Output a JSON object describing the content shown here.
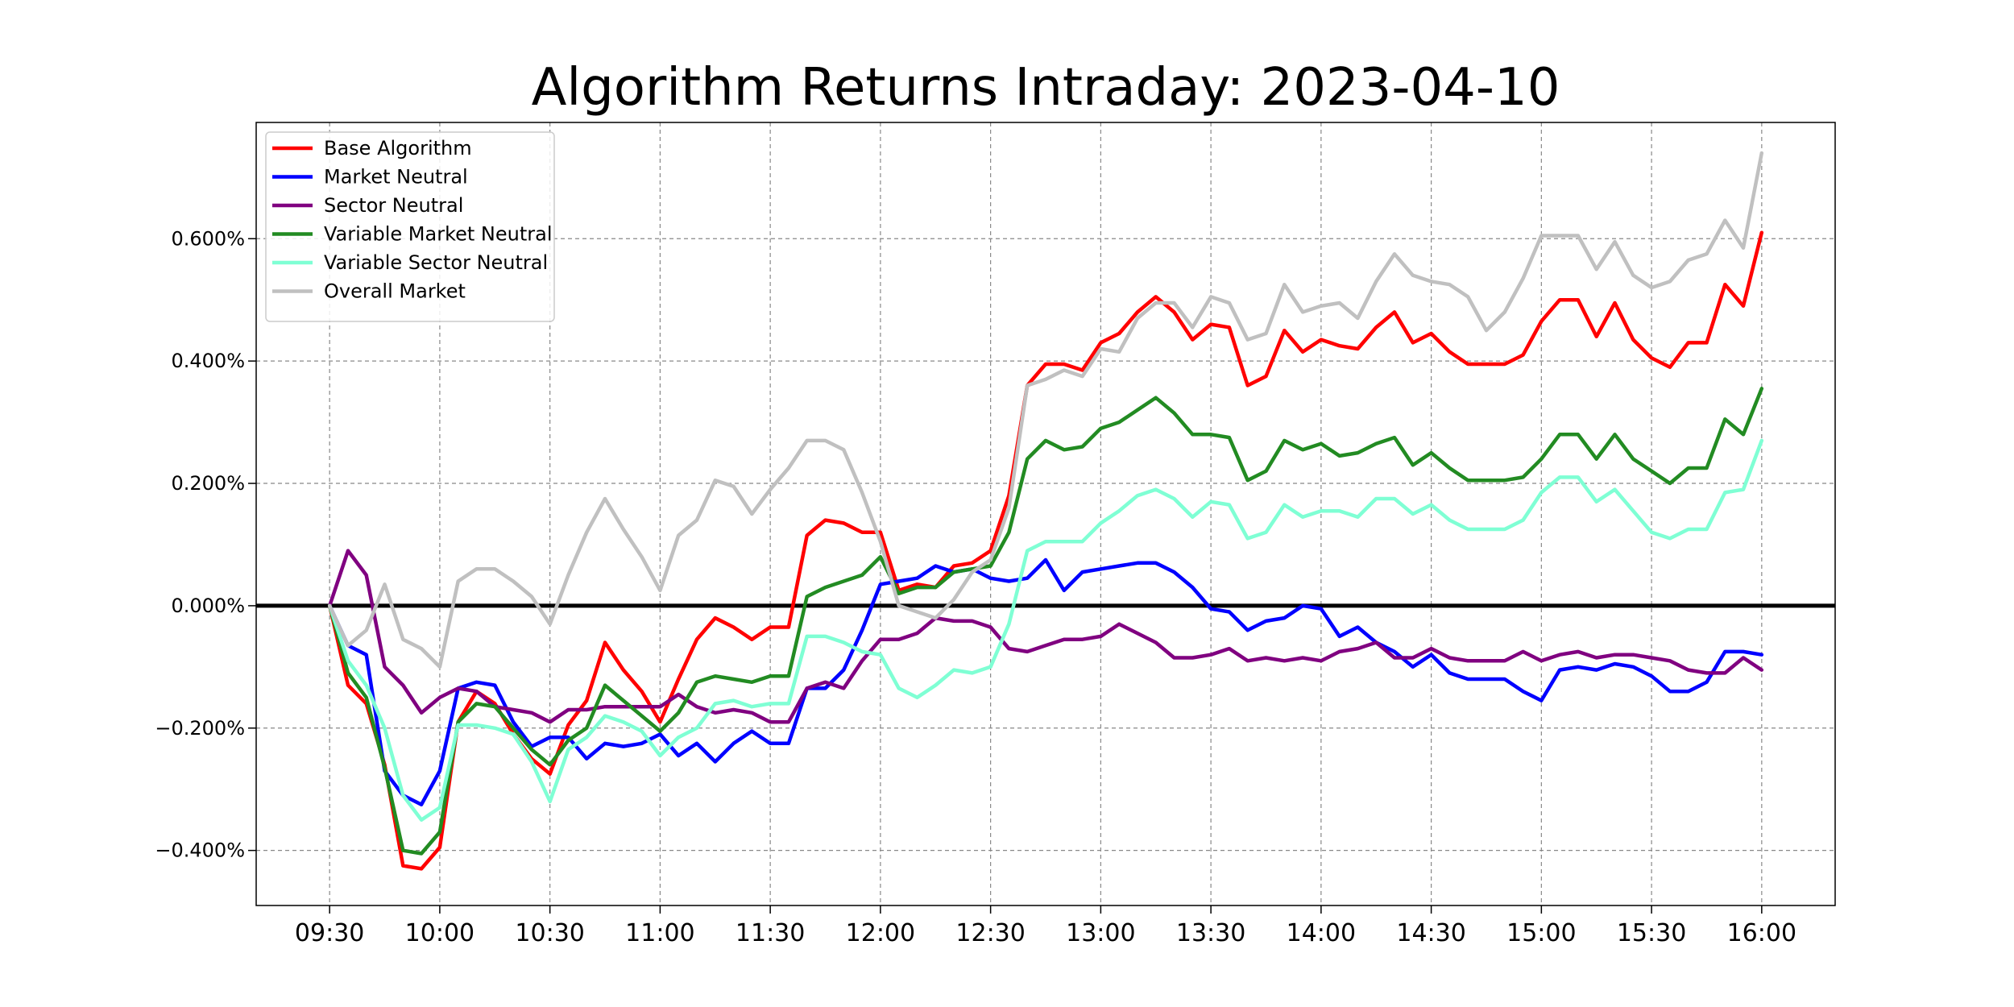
{
  "chart_data": {
    "type": "line",
    "title": "Algorithm Returns Intraday: 2023-04-10",
    "xlabel": "",
    "ylabel": "",
    "x_ticks": [
      "09:30",
      "10:00",
      "10:30",
      "11:00",
      "11:30",
      "12:00",
      "12:30",
      "13:00",
      "13:30",
      "14:00",
      "14:30",
      "15:00",
      "15:30",
      "16:00"
    ],
    "y_ticks": [
      "0.600%",
      "0.400%",
      "0.200%",
      "0.000%",
      "−0.200%",
      "−0.400%"
    ],
    "y_tick_values": [
      0.6,
      0.4,
      0.2,
      0.0,
      -0.2,
      -0.4
    ],
    "xlim": [
      "09:10",
      "16:20"
    ],
    "ylim": [
      -0.49,
      0.79
    ],
    "interval_minutes": 5,
    "start_time": "09:30",
    "grid": true,
    "zero_line": true,
    "legend_position": "top-left",
    "series": [
      {
        "name": "Base Algorithm",
        "color": "#ff0000",
        "values": [
          0.0,
          -0.13,
          -0.16,
          -0.26,
          -0.425,
          -0.43,
          -0.395,
          -0.19,
          -0.14,
          -0.16,
          -0.21,
          -0.25,
          -0.275,
          -0.195,
          -0.155,
          -0.06,
          -0.105,
          -0.14,
          -0.19,
          -0.12,
          -0.055,
          -0.02,
          -0.035,
          -0.055,
          -0.035,
          -0.035,
          0.115,
          0.14,
          0.135,
          0.12,
          0.12,
          0.025,
          0.035,
          0.03,
          0.065,
          0.07,
          0.09,
          0.18,
          0.36,
          0.395,
          0.395,
          0.385,
          0.43,
          0.445,
          0.48,
          0.505,
          0.48,
          0.435,
          0.46,
          0.455,
          0.36,
          0.375,
          0.45,
          0.415,
          0.435,
          0.425,
          0.42,
          0.455,
          0.48,
          0.43,
          0.445,
          0.415,
          0.395,
          0.395,
          0.395,
          0.41,
          0.465,
          0.5,
          0.5,
          0.44,
          0.495,
          0.435,
          0.405,
          0.39,
          0.43,
          0.43,
          0.525,
          0.49,
          0.61
        ]
      },
      {
        "name": "Market Neutral",
        "color": "#0000ff",
        "values": [
          0.0,
          -0.065,
          -0.08,
          -0.27,
          -0.31,
          -0.325,
          -0.27,
          -0.135,
          -0.125,
          -0.13,
          -0.19,
          -0.23,
          -0.215,
          -0.215,
          -0.25,
          -0.225,
          -0.23,
          -0.225,
          -0.21,
          -0.245,
          -0.225,
          -0.255,
          -0.225,
          -0.205,
          -0.225,
          -0.225,
          -0.135,
          -0.135,
          -0.105,
          -0.04,
          0.035,
          0.04,
          0.045,
          0.065,
          0.055,
          0.06,
          0.045,
          0.04,
          0.045,
          0.075,
          0.025,
          0.055,
          0.06,
          0.065,
          0.07,
          0.07,
          0.055,
          0.03,
          -0.005,
          -0.01,
          -0.04,
          -0.025,
          -0.02,
          0.0,
          -0.005,
          -0.05,
          -0.035,
          -0.06,
          -0.075,
          -0.1,
          -0.08,
          -0.11,
          -0.12,
          -0.12,
          -0.12,
          -0.14,
          -0.155,
          -0.105,
          -0.1,
          -0.105,
          -0.095,
          -0.1,
          -0.115,
          -0.14,
          -0.14,
          -0.125,
          -0.075,
          -0.075,
          -0.08
        ]
      },
      {
        "name": "Sector Neutral",
        "color": "#800080",
        "values": [
          0.0,
          0.09,
          0.05,
          -0.1,
          -0.13,
          -0.175,
          -0.15,
          -0.135,
          -0.14,
          -0.165,
          -0.17,
          -0.175,
          -0.19,
          -0.17,
          -0.17,
          -0.165,
          -0.165,
          -0.165,
          -0.165,
          -0.145,
          -0.165,
          -0.175,
          -0.17,
          -0.175,
          -0.19,
          -0.19,
          -0.135,
          -0.125,
          -0.135,
          -0.09,
          -0.055,
          -0.055,
          -0.045,
          -0.02,
          -0.025,
          -0.025,
          -0.035,
          -0.07,
          -0.075,
          -0.065,
          -0.055,
          -0.055,
          -0.05,
          -0.03,
          -0.045,
          -0.06,
          -0.085,
          -0.085,
          -0.08,
          -0.07,
          -0.09,
          -0.085,
          -0.09,
          -0.085,
          -0.09,
          -0.075,
          -0.07,
          -0.06,
          -0.085,
          -0.085,
          -0.07,
          -0.085,
          -0.09,
          -0.09,
          -0.09,
          -0.075,
          -0.09,
          -0.08,
          -0.075,
          -0.085,
          -0.08,
          -0.08,
          -0.085,
          -0.09,
          -0.105,
          -0.11,
          -0.11,
          -0.085,
          -0.105
        ]
      },
      {
        "name": "Variable Market Neutral",
        "color": "#228b22",
        "values": [
          0.0,
          -0.11,
          -0.15,
          -0.265,
          -0.4,
          -0.405,
          -0.37,
          -0.19,
          -0.16,
          -0.165,
          -0.2,
          -0.235,
          -0.26,
          -0.22,
          -0.2,
          -0.13,
          -0.155,
          -0.18,
          -0.205,
          -0.175,
          -0.125,
          -0.115,
          -0.12,
          -0.125,
          -0.115,
          -0.115,
          0.015,
          0.03,
          0.04,
          0.05,
          0.08,
          0.02,
          0.03,
          0.03,
          0.055,
          0.06,
          0.065,
          0.12,
          0.24,
          0.27,
          0.255,
          0.26,
          0.29,
          0.3,
          0.32,
          0.34,
          0.315,
          0.28,
          0.28,
          0.275,
          0.205,
          0.22,
          0.27,
          0.255,
          0.265,
          0.245,
          0.25,
          0.265,
          0.275,
          0.23,
          0.25,
          0.225,
          0.205,
          0.205,
          0.205,
          0.21,
          0.24,
          0.28,
          0.28,
          0.24,
          0.28,
          0.24,
          0.22,
          0.2,
          0.225,
          0.225,
          0.305,
          0.28,
          0.355
        ]
      },
      {
        "name": "Variable Sector Neutral",
        "color": "#7fffd4",
        "values": [
          0.0,
          -0.09,
          -0.13,
          -0.2,
          -0.31,
          -0.35,
          -0.33,
          -0.195,
          -0.195,
          -0.2,
          -0.21,
          -0.255,
          -0.32,
          -0.235,
          -0.215,
          -0.18,
          -0.19,
          -0.205,
          -0.245,
          -0.215,
          -0.2,
          -0.16,
          -0.155,
          -0.165,
          -0.16,
          -0.16,
          -0.05,
          -0.05,
          -0.06,
          -0.075,
          -0.08,
          -0.135,
          -0.15,
          -0.13,
          -0.105,
          -0.11,
          -0.1,
          -0.03,
          0.09,
          0.105,
          0.105,
          0.105,
          0.135,
          0.155,
          0.18,
          0.19,
          0.175,
          0.145,
          0.17,
          0.165,
          0.11,
          0.12,
          0.165,
          0.145,
          0.155,
          0.155,
          0.145,
          0.175,
          0.175,
          0.15,
          0.165,
          0.14,
          0.125,
          0.125,
          0.125,
          0.14,
          0.185,
          0.21,
          0.21,
          0.17,
          0.19,
          0.155,
          0.12,
          0.11,
          0.125,
          0.125,
          0.185,
          0.19,
          0.27
        ]
      },
      {
        "name": "Overall Market",
        "color": "#c0c0c0",
        "values": [
          0.0,
          -0.065,
          -0.04,
          0.035,
          -0.055,
          -0.07,
          -0.1,
          0.04,
          0.06,
          0.06,
          0.04,
          0.015,
          -0.03,
          0.05,
          0.12,
          0.175,
          0.125,
          0.08,
          0.025,
          0.115,
          0.14,
          0.205,
          0.195,
          0.15,
          0.19,
          0.225,
          0.27,
          0.27,
          0.255,
          0.185,
          0.105,
          0.0,
          -0.01,
          -0.02,
          0.01,
          0.055,
          0.075,
          0.16,
          0.36,
          0.37,
          0.385,
          0.375,
          0.42,
          0.415,
          0.47,
          0.495,
          0.495,
          0.455,
          0.505,
          0.495,
          0.435,
          0.445,
          0.525,
          0.48,
          0.49,
          0.495,
          0.47,
          0.53,
          0.575,
          0.54,
          0.53,
          0.525,
          0.505,
          0.45,
          0.48,
          0.535,
          0.605,
          0.605,
          0.605,
          0.55,
          0.595,
          0.54,
          0.52,
          0.53,
          0.565,
          0.575,
          0.63,
          0.585,
          0.74
        ]
      }
    ]
  }
}
